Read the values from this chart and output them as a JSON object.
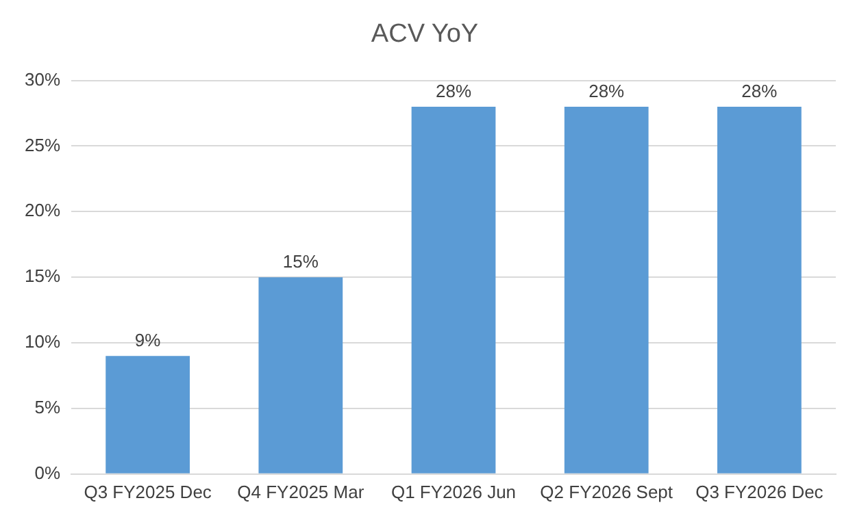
{
  "chart_data": {
    "type": "bar",
    "title": "ACV YoY",
    "categories": [
      "Q3 FY2025 Dec",
      "Q4 FY2025 Mar",
      "Q1 FY2026 Jun",
      "Q2 FY2026 Sept",
      "Q3 FY2026 Dec"
    ],
    "values": [
      9,
      15,
      28,
      28,
      28
    ],
    "value_labels": [
      "9%",
      "15%",
      "28%",
      "28%",
      "28%"
    ],
    "color": "#5b9bd5",
    "ylim": [
      0,
      30
    ],
    "yticks": [
      {
        "value": 0,
        "label": "0%"
      },
      {
        "value": 5,
        "label": "5%"
      },
      {
        "value": 10,
        "label": "10%"
      },
      {
        "value": 15,
        "label": "15%"
      },
      {
        "value": 20,
        "label": "20%"
      },
      {
        "value": 25,
        "label": "25%"
      },
      {
        "value": 30,
        "label": "30%"
      }
    ],
    "grid": "y"
  }
}
